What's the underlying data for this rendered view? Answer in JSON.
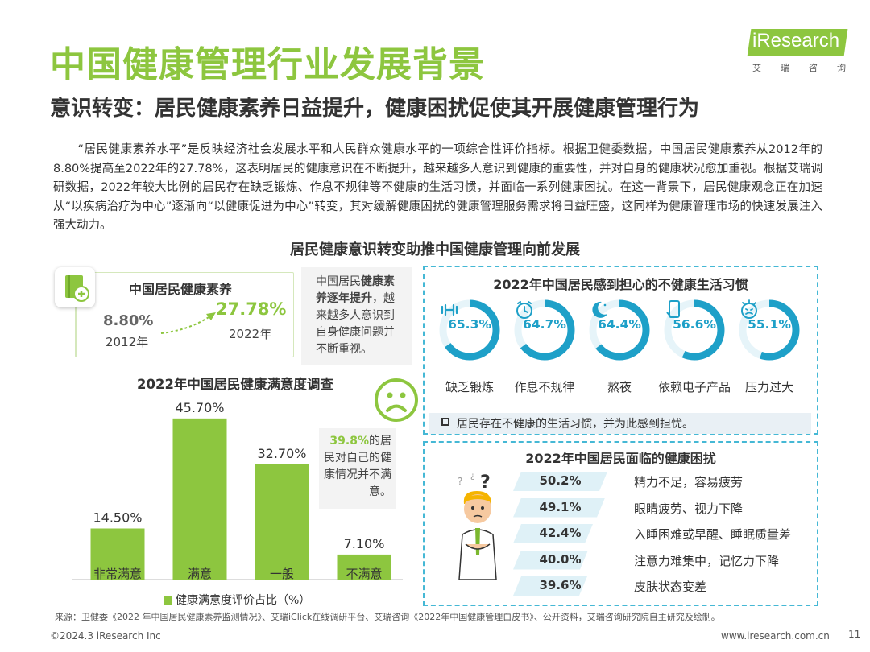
{
  "header": {
    "title": "中国健康管理行业发展背景",
    "subtitle": "意识转变：居民健康素养日益提升，健康困扰促使其开展健康管理行为",
    "logo_word": "iResearch",
    "logo_sub": [
      "艾",
      "瑞",
      "咨",
      "询"
    ]
  },
  "intro": "“居民健康素养水平”是反映经济社会发展水平和人民群众健康水平的一项综合性评价指标。根据卫健委数据，中国居民健康素养从2012年的8.80%提高至2022年的27.78%，这表明居民的健康意识在不断提升，越来越多人意识到健康的重要性，并对自身的健康状况愈加重视。根据艾瑞调研数据，2022年较大比例的居民存在缺乏锻炼、作息不规律等不健康的生活习惯，并面临一系列健康困扰。在这一背景下，居民健康观念正在加速从“以疾病治疗为中心”逐渐向“以健康促进为中心”转变，其对缓解健康困扰的健康管理服务需求将日益旺盛，这同样为健康管理市场的快速发展注入强大动力。",
  "section_title": "居民健康意识转变助推中国健康管理向前发展",
  "literacy": {
    "title": "中国居民健康素养",
    "value_2012": "8.80%",
    "year_2012": "2012年",
    "value_2022": "27.78%",
    "year_2022": "2022年",
    "note_a": "中国居民",
    "note_b": "健康素养逐年提升",
    "note_c": "，越来越多人意识到自身健康问题并不断重视。"
  },
  "satisfaction_note": {
    "highlight": "39.8%",
    "text": "的居民对自己的健康情况并不满意。"
  },
  "habit_note": "居民存在不健康的生活习惯，并为此感到担忧。",
  "footer": {
    "source": "来源：卫健委《2022 年中国居民健康素养监测情况》、艾瑞iClick在线调研平台、艾瑞咨询《2022年中国健康管理白皮书》、公开资料，艾瑞咨询研究院自主研究及绘制。",
    "copyright": "©2024.3 iResearch Inc",
    "site": "www.iresearch.com.cn",
    "page": "11"
  },
  "colors": {
    "green": "#8dc63f",
    "blue": "#1ea0c8",
    "light_blue": "#dff1f7"
  },
  "chart_data": [
    {
      "type": "bar",
      "title": "2022年中国居民健康满意度调查",
      "categories": [
        "非常满意",
        "满意",
        "一般",
        "不满意"
      ],
      "values": [
        14.5,
        45.7,
        32.7,
        7.1
      ],
      "value_labels": [
        "14.50%",
        "45.70%",
        "32.70%",
        "7.10%"
      ],
      "legend": "健康满意度评价占比（%）",
      "ylim": [
        0,
        50
      ]
    },
    {
      "type": "pie",
      "title": "2022年中国居民感到担心的不健康生活习惯",
      "categories": [
        "缺乏锻炼",
        "作息不规律",
        "熬夜",
        "依赖电子产品",
        "压力过大"
      ],
      "values": [
        65.3,
        64.7,
        64.4,
        56.6,
        55.1
      ],
      "value_labels": [
        "65.3%",
        "64.7%",
        "64.4%",
        "56.6%",
        "55.1%"
      ],
      "icons": [
        "dumbbell-icon",
        "clock-icon",
        "moon-icon",
        "phone-icon",
        "stress-face-icon"
      ]
    },
    {
      "type": "bar",
      "title": "2022年中国居民面临的健康困扰",
      "categories": [
        "精力不足，容易疲劳",
        "眼睛疲劳、视力下降",
        "入睡困难或早醒、睡眠质量差",
        "注意力难集中，记忆力下降",
        "皮肤状态变差"
      ],
      "values": [
        50.2,
        49.1,
        42.4,
        40.0,
        39.6
      ],
      "value_labels": [
        "50.2%",
        "49.1%",
        "42.4%",
        "40.0%",
        "39.6%"
      ]
    }
  ]
}
